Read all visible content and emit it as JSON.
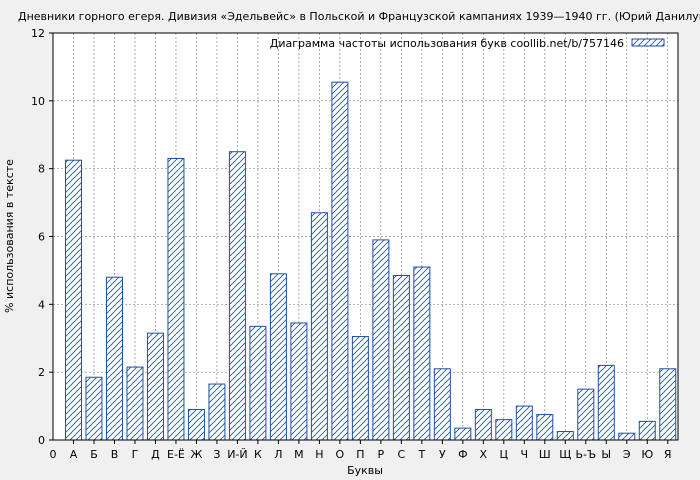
{
  "chart_data": {
    "type": "bar",
    "title": "Дневники горного егеря. Дивизия «Эдельвейс» в Польской и Французской кампаниях 1939—1940 гг. (Юрий Данилушкин)",
    "xlabel": "Буквы",
    "ylabel": "% использования в тексте",
    "ylim": [
      0,
      12
    ],
    "yticks": [
      0,
      2,
      4,
      6,
      8,
      10,
      12
    ],
    "x_origin_label": "0",
    "grid": true,
    "legend_position": "top-right",
    "categories": [
      "А",
      "Б",
      "В",
      "Г",
      "Д",
      "Е-Ё",
      "Ж",
      "З",
      "И-Й",
      "К",
      "Л",
      "М",
      "Н",
      "О",
      "П",
      "Р",
      "С",
      "Т",
      "У",
      "Ф",
      "Х",
      "Ц",
      "Ч",
      "Ш",
      "Щ",
      "Ь-Ъ",
      "Ы",
      "Э",
      "Ю",
      "Я"
    ],
    "series": [
      {
        "name": "Диаграмма частоты использования букв coollib.net/b/757146",
        "color": "#1f4fa8",
        "values": [
          8.25,
          1.85,
          4.8,
          2.15,
          3.15,
          8.3,
          0.9,
          1.65,
          8.5,
          3.35,
          4.9,
          3.45,
          6.7,
          10.55,
          3.05,
          5.9,
          4.85,
          5.1,
          2.1,
          0.35,
          0.9,
          0.6,
          1.0,
          0.75,
          0.25,
          1.5,
          2.2,
          0.2,
          0.55,
          2.1
        ]
      }
    ]
  }
}
